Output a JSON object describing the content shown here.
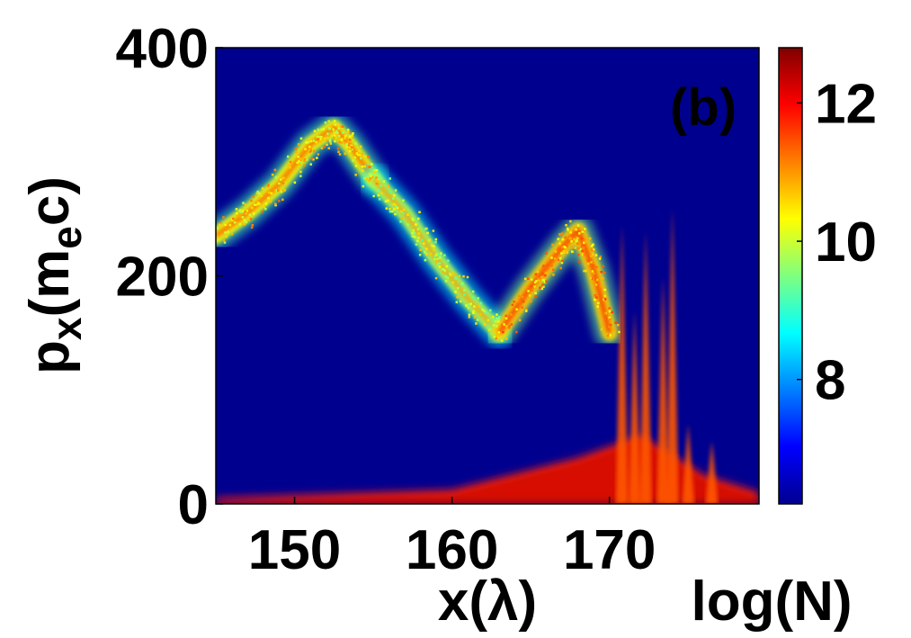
{
  "chart_data": {
    "type": "heatmap",
    "panel_label": "(b)",
    "xlabel": "x(λ)",
    "ylabel_main": "p",
    "ylabel_sub": "x",
    "ylabel_paren_open": "(m",
    "ylabel_sub2": "e",
    "ylabel_tail": "c)",
    "colorbar_label": "log(N)",
    "xlim": [
      145,
      179.5
    ],
    "ylim": [
      0,
      400
    ],
    "xticks": [
      150,
      160,
      170
    ],
    "xtick_labels": [
      "150",
      "160",
      "170"
    ],
    "yticks": [
      0,
      200,
      400
    ],
    "ytick_labels": [
      "0",
      "200",
      "400"
    ],
    "clim": [
      6.2,
      12.8
    ],
    "cticks": [
      8,
      10,
      12
    ],
    "ctick_labels": [
      "8",
      "10",
      "12"
    ],
    "background_value_color": "#00008f",
    "panel_label_color": "#e01010",
    "colormap": "jet",
    "grid": false,
    "features": [
      {
        "name": "high-energy-arc",
        "points": [
          [
            145,
            235
          ],
          [
            147,
            255
          ],
          [
            149,
            280
          ],
          [
            151,
            315
          ],
          [
            152.5,
            330
          ],
          [
            153.5,
            315
          ],
          [
            155,
            285
          ]
        ],
        "log_density": 10.3
      },
      {
        "name": "decelerating-branch",
        "points": [
          [
            155,
            285
          ],
          [
            157,
            255
          ],
          [
            159,
            215
          ],
          [
            161,
            180
          ],
          [
            163,
            150
          ]
        ],
        "log_density": 9.8
      },
      {
        "name": "second-bunch",
        "points": [
          [
            163,
            150
          ],
          [
            165,
            190
          ],
          [
            167,
            225
          ],
          [
            168,
            240
          ],
          [
            169,
            205
          ],
          [
            170,
            150
          ]
        ],
        "log_density": 10.6
      },
      {
        "name": "low-momentum-bulk",
        "points": [
          [
            145,
            5
          ],
          [
            160,
            12
          ],
          [
            168,
            40
          ],
          [
            172,
            60
          ],
          [
            176,
            25
          ],
          [
            179.5,
            10
          ]
        ],
        "log_density": 11.8
      },
      {
        "name": "spikes",
        "points": [
          [
            170.8,
            245
          ],
          [
            171.6,
            170
          ],
          [
            172.3,
            240
          ],
          [
            173.4,
            200
          ],
          [
            174.0,
            260
          ],
          [
            175.0,
            70
          ],
          [
            176.5,
            55
          ]
        ],
        "log_density": 11.4
      }
    ]
  }
}
